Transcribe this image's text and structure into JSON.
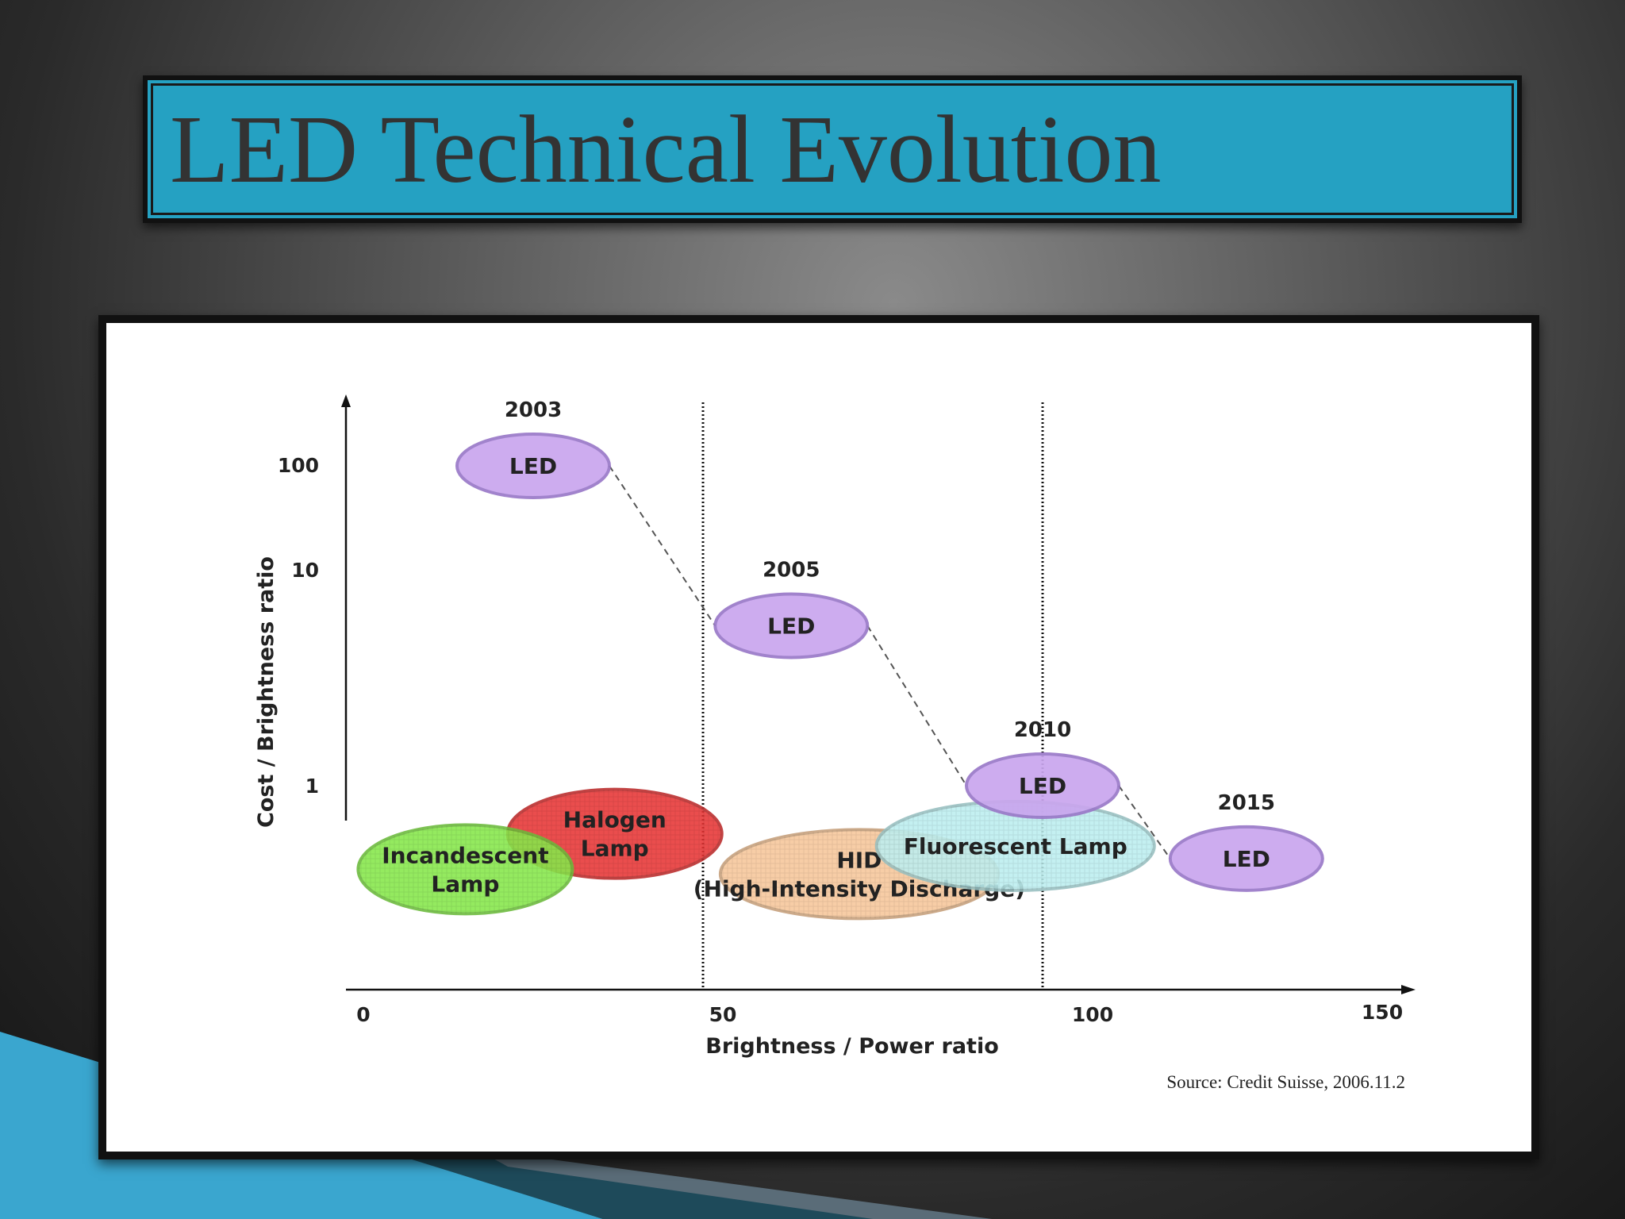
{
  "slide": {
    "title": "LED Technical Evolution",
    "accent_color": "#25a1c2"
  },
  "chart_data": {
    "type": "scatter",
    "xlabel": "Brightness / Power ratio",
    "ylabel": "Cost / Brightness ratio",
    "x_ticks": [
      "0",
      "50",
      "100",
      "150"
    ],
    "y_ticks": [
      "100",
      "10",
      "1"
    ],
    "xlim": [
      0,
      150
    ],
    "y_scale": "log",
    "reference_lines_x": [
      50,
      100
    ],
    "source": "Source: Credit Suisse, 2006.11.2",
    "series": [
      {
        "name": "LED",
        "color": "#c9a6ee",
        "connected": true,
        "points": [
          {
            "year": "2003",
            "label": "LED",
            "x": 25,
            "y": 100
          },
          {
            "year": "2005",
            "label": "LED",
            "x": 63,
            "y": 10
          },
          {
            "year": "2010",
            "label": "LED",
            "x": 100,
            "y": 1
          },
          {
            "year": "2015",
            "label": "LED",
            "x": 130,
            "y": 0.35
          }
        ]
      }
    ],
    "technologies": [
      {
        "label_lines": [
          "Halogen",
          "Lamp"
        ],
        "color": "#e83535",
        "x": 37,
        "y": 0.5
      },
      {
        "label_lines": [
          "Incandescent",
          "Lamp"
        ],
        "color": "#86e84a",
        "x": 15,
        "y": 0.3
      },
      {
        "label_lines": [
          "HID",
          "(High-Intensity Discharge)"
        ],
        "color": "#f7c79a",
        "x": 73,
        "y": 0.28
      },
      {
        "label_lines": [
          "Fluorescent Lamp"
        ],
        "color": "#bdeff0",
        "x": 96,
        "y": 0.42
      }
    ]
  }
}
